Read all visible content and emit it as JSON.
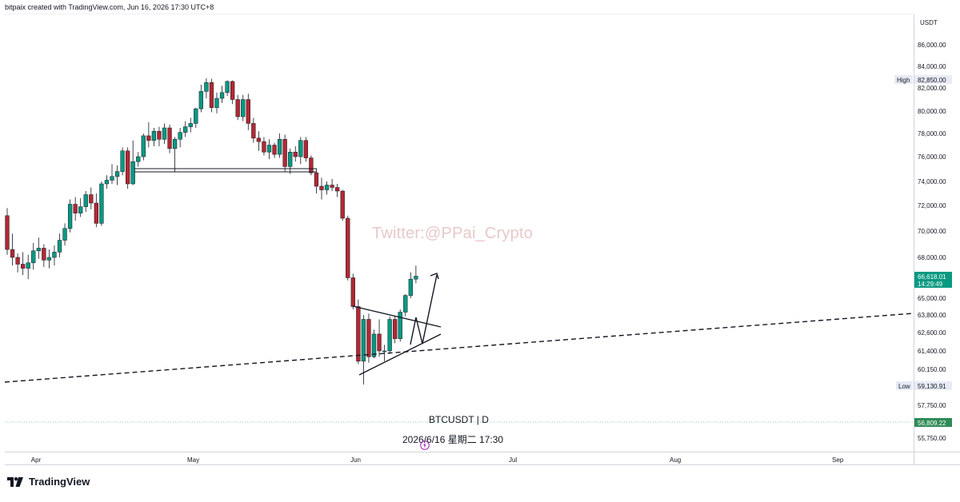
{
  "header": {
    "attribution": "bitpaix created with TradingView.com, Jun 16, 2026 17:30 UTC+8"
  },
  "watermark": "Twitter:@PPai_Crypto",
  "symbol_label": "BTCUSDT | D",
  "datetime_label": "2026/6/16 星期二 17:30",
  "brand": "TradingView",
  "colors": {
    "up": "#089981",
    "down": "#b22833",
    "line": "#131722",
    "price_tag": "#089981"
  },
  "price_axis": {
    "currency": "USDT",
    "high_label": "High",
    "high_value": "82,850.00",
    "low_label": "Low",
    "low_value": "59,130.91",
    "last_price": "66,618.01",
    "countdown": "14:29:49",
    "other_tag": "56,809.22"
  },
  "chart_data": {
    "type": "candlestick",
    "y_ticks": [
      {
        "label": "86,000.00",
        "value": 86000
      },
      {
        "label": "84,000.00",
        "value": 84000
      },
      {
        "label": "82,000.00",
        "value": 82000
      },
      {
        "label": "80,000.00",
        "value": 80000
      },
      {
        "label": "78,000.00",
        "value": 78000
      },
      {
        "label": "76,000.00",
        "value": 76000
      },
      {
        "label": "74,000.00",
        "value": 74000
      },
      {
        "label": "72,000.00",
        "value": 72000
      },
      {
        "label": "70,000.00",
        "value": 70000
      },
      {
        "label": "68,000.00",
        "value": 68000
      },
      {
        "label": "65,000.00",
        "value": 65000
      },
      {
        "label": "63,800.00",
        "value": 63800
      },
      {
        "label": "62,600.00",
        "value": 62600
      },
      {
        "label": "61,400.00",
        "value": 61400
      },
      {
        "label": "60,150.00",
        "value": 60150
      },
      {
        "label": "57,750.00",
        "value": 57750
      },
      {
        "label": "55,750.00",
        "value": 55750
      }
    ],
    "x_ticks": [
      {
        "label": "Apr",
        "index": 5.5
      },
      {
        "label": "May",
        "index": 35.5
      },
      {
        "label": "Jun",
        "index": 66.5
      },
      {
        "label": "Jul",
        "index": 96.5
      },
      {
        "label": "Aug",
        "index": 127.5
      },
      {
        "label": "Sep",
        "index": 158.5
      }
    ],
    "candles": [
      {
        "o": 71200,
        "h": 71800,
        "l": 68200,
        "c": 68600
      },
      {
        "o": 68600,
        "h": 69800,
        "l": 67400,
        "c": 68000
      },
      {
        "o": 68000,
        "h": 68300,
        "l": 66900,
        "c": 67500
      },
      {
        "o": 67500,
        "h": 68400,
        "l": 66700,
        "c": 67200
      },
      {
        "o": 67200,
        "h": 68200,
        "l": 66400,
        "c": 67600
      },
      {
        "o": 67600,
        "h": 69100,
        "l": 67100,
        "c": 68500
      },
      {
        "o": 68500,
        "h": 69500,
        "l": 67900,
        "c": 68700
      },
      {
        "o": 68700,
        "h": 69000,
        "l": 67300,
        "c": 67800
      },
      {
        "o": 67800,
        "h": 68600,
        "l": 67200,
        "c": 68000
      },
      {
        "o": 68000,
        "h": 68900,
        "l": 67400,
        "c": 68400
      },
      {
        "o": 68400,
        "h": 69800,
        "l": 68000,
        "c": 69300
      },
      {
        "o": 69300,
        "h": 70600,
        "l": 68900,
        "c": 70200
      },
      {
        "o": 70200,
        "h": 72500,
        "l": 69900,
        "c": 72100
      },
      {
        "o": 72100,
        "h": 72700,
        "l": 70800,
        "c": 71400
      },
      {
        "o": 71400,
        "h": 72600,
        "l": 71100,
        "c": 71900
      },
      {
        "o": 71900,
        "h": 73200,
        "l": 71500,
        "c": 72900
      },
      {
        "o": 72900,
        "h": 73500,
        "l": 71700,
        "c": 72200
      },
      {
        "o": 72200,
        "h": 73000,
        "l": 70300,
        "c": 70600
      },
      {
        "o": 70600,
        "h": 74000,
        "l": 70400,
        "c": 73800
      },
      {
        "o": 73800,
        "h": 74500,
        "l": 73400,
        "c": 74100
      },
      {
        "o": 74100,
        "h": 75400,
        "l": 73800,
        "c": 74400
      },
      {
        "o": 74400,
        "h": 75300,
        "l": 73700,
        "c": 74800
      },
      {
        "o": 74800,
        "h": 76800,
        "l": 74500,
        "c": 76500
      },
      {
        "o": 76500,
        "h": 76800,
        "l": 73400,
        "c": 73800
      },
      {
        "o": 73800,
        "h": 77400,
        "l": 73700,
        "c": 75600
      },
      {
        "o": 75600,
        "h": 76400,
        "l": 75200,
        "c": 76000
      },
      {
        "o": 76000,
        "h": 78000,
        "l": 75700,
        "c": 77800
      },
      {
        "o": 77800,
        "h": 79000,
        "l": 76800,
        "c": 77400
      },
      {
        "o": 77400,
        "h": 78500,
        "l": 76900,
        "c": 78200
      },
      {
        "o": 78200,
        "h": 78600,
        "l": 76900,
        "c": 77500
      },
      {
        "o": 77500,
        "h": 78900,
        "l": 77100,
        "c": 78500
      },
      {
        "o": 78500,
        "h": 78800,
        "l": 76300,
        "c": 76700
      },
      {
        "o": 76700,
        "h": 77700,
        "l": 74800,
        "c": 77500
      },
      {
        "o": 77500,
        "h": 78500,
        "l": 76800,
        "c": 78100
      },
      {
        "o": 78100,
        "h": 79100,
        "l": 77700,
        "c": 78600
      },
      {
        "o": 78600,
        "h": 79400,
        "l": 78100,
        "c": 78900
      },
      {
        "o": 78900,
        "h": 80300,
        "l": 78500,
        "c": 80200
      },
      {
        "o": 80200,
        "h": 82300,
        "l": 79900,
        "c": 81700
      },
      {
        "o": 81700,
        "h": 82900,
        "l": 81100,
        "c": 82500
      },
      {
        "o": 82500,
        "h": 82850,
        "l": 79900,
        "c": 80300
      },
      {
        "o": 80300,
        "h": 81600,
        "l": 79800,
        "c": 81100
      },
      {
        "o": 81100,
        "h": 82200,
        "l": 80700,
        "c": 81600
      },
      {
        "o": 81600,
        "h": 82700,
        "l": 81300,
        "c": 82600
      },
      {
        "o": 82600,
        "h": 82700,
        "l": 80600,
        "c": 81000
      },
      {
        "o": 81000,
        "h": 81400,
        "l": 79200,
        "c": 79500
      },
      {
        "o": 79500,
        "h": 81400,
        "l": 79100,
        "c": 81000
      },
      {
        "o": 81000,
        "h": 81500,
        "l": 78300,
        "c": 78900
      },
      {
        "o": 78900,
        "h": 79400,
        "l": 77200,
        "c": 77600
      },
      {
        "o": 77600,
        "h": 78200,
        "l": 76500,
        "c": 77300
      },
      {
        "o": 77300,
        "h": 77700,
        "l": 76100,
        "c": 76400
      },
      {
        "o": 76400,
        "h": 77500,
        "l": 75800,
        "c": 77000
      },
      {
        "o": 77000,
        "h": 77200,
        "l": 75900,
        "c": 76200
      },
      {
        "o": 76200,
        "h": 78000,
        "l": 75900,
        "c": 77500
      },
      {
        "o": 77500,
        "h": 77900,
        "l": 74800,
        "c": 75200
      },
      {
        "o": 75200,
        "h": 76700,
        "l": 74600,
        "c": 76400
      },
      {
        "o": 76400,
        "h": 76900,
        "l": 75600,
        "c": 76000
      },
      {
        "o": 76000,
        "h": 77700,
        "l": 75400,
        "c": 77400
      },
      {
        "o": 77400,
        "h": 77700,
        "l": 75600,
        "c": 75900
      },
      {
        "o": 75900,
        "h": 76100,
        "l": 74500,
        "c": 74700
      },
      {
        "o": 74700,
        "h": 75000,
        "l": 73000,
        "c": 73600
      },
      {
        "o": 73600,
        "h": 74300,
        "l": 72500,
        "c": 73300
      },
      {
        "o": 73300,
        "h": 74000,
        "l": 72900,
        "c": 73700
      },
      {
        "o": 73700,
        "h": 74200,
        "l": 73200,
        "c": 73500
      },
      {
        "o": 73500,
        "h": 73800,
        "l": 72700,
        "c": 73200
      },
      {
        "o": 73200,
        "h": 73300,
        "l": 70800,
        "c": 71000
      },
      {
        "o": 71000,
        "h": 71200,
        "l": 66300,
        "c": 66500
      },
      {
        "o": 66500,
        "h": 66800,
        "l": 64200,
        "c": 64400
      },
      {
        "o": 64400,
        "h": 64900,
        "l": 60500,
        "c": 60700
      },
      {
        "o": 60700,
        "h": 63800,
        "l": 59130,
        "c": 63500
      },
      {
        "o": 63500,
        "h": 63900,
        "l": 60600,
        "c": 61000
      },
      {
        "o": 61000,
        "h": 62800,
        "l": 60900,
        "c": 62500
      },
      {
        "o": 62500,
        "h": 63500,
        "l": 61000,
        "c": 61400
      },
      {
        "o": 61400,
        "h": 61800,
        "l": 60700,
        "c": 61400
      },
      {
        "o": 61400,
        "h": 63700,
        "l": 61200,
        "c": 63500
      },
      {
        "o": 63500,
        "h": 63700,
        "l": 61900,
        "c": 62200
      },
      {
        "o": 62200,
        "h": 64200,
        "l": 62000,
        "c": 64000
      },
      {
        "o": 64000,
        "h": 65300,
        "l": 63700,
        "c": 65200
      },
      {
        "o": 65200,
        "h": 66900,
        "l": 65000,
        "c": 66400
      },
      {
        "o": 66400,
        "h": 67400,
        "l": 66100,
        "c": 66618
      }
    ]
  }
}
